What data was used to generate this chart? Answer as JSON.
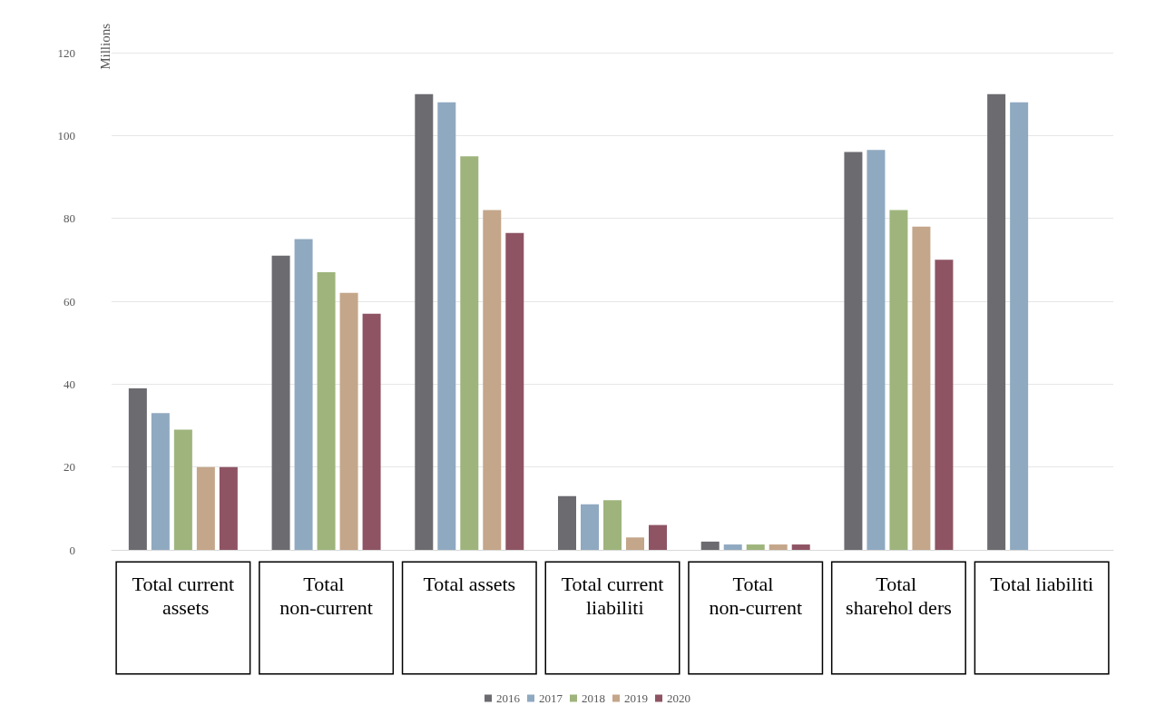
{
  "chart_data": {
    "type": "bar",
    "ylabel": "Millions",
    "categories": [
      "Total current assets",
      "Total non-current",
      "Total assets",
      "Total current liabiliti",
      "Total non-current",
      "Total sharehol ders",
      "Total liabiliti"
    ],
    "series": [
      {
        "name": "2016",
        "color": "#6b6b70",
        "values": [
          39,
          71,
          110,
          13,
          2,
          96,
          110
        ]
      },
      {
        "name": "2017",
        "color": "#8fa9c0",
        "values": [
          33,
          75,
          108,
          11,
          1.3,
          96.5,
          108
        ]
      },
      {
        "name": "2018",
        "color": "#9eb47c",
        "values": [
          29,
          67,
          95,
          12,
          1.3,
          82,
          null
        ]
      },
      {
        "name": "2019",
        "color": "#c4a68a",
        "values": [
          20,
          62,
          82,
          3,
          1.3,
          78,
          null
        ]
      },
      {
        "name": "2020",
        "color": "#8e5464",
        "values": [
          20,
          57,
          76.5,
          6,
          1.3,
          70,
          null
        ]
      }
    ],
    "ylim": [
      0,
      120
    ],
    "yticks": [
      0,
      20,
      40,
      60,
      80,
      100,
      120
    ],
    "grid": "y",
    "legend": "bottom"
  }
}
